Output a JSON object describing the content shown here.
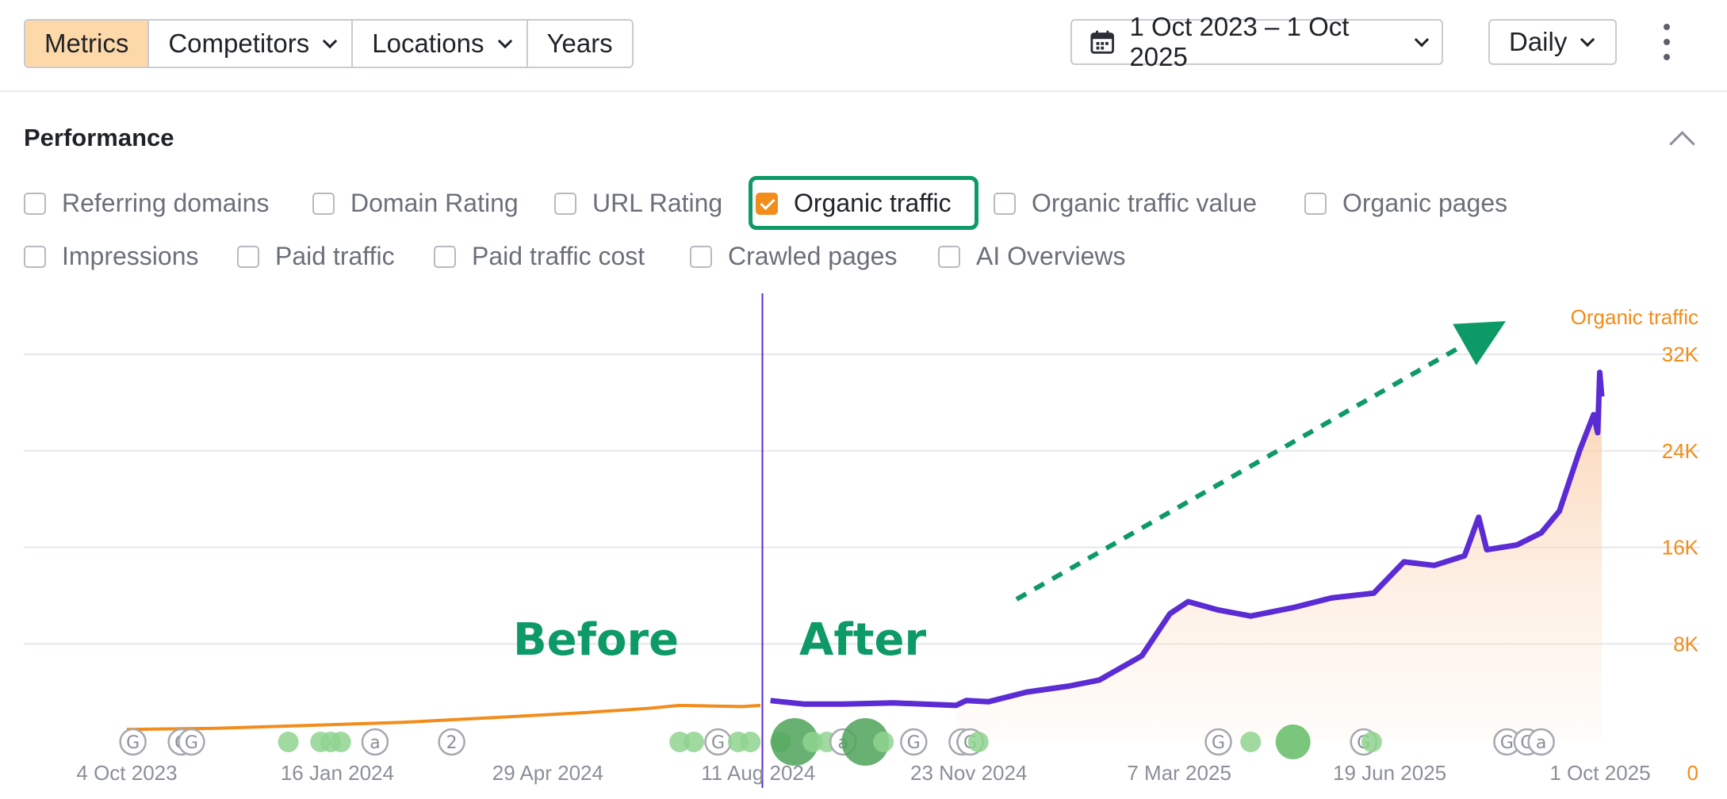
{
  "toolbar": {
    "tabs": [
      {
        "label": "Metrics",
        "active": true,
        "has_dropdown": false
      },
      {
        "label": "Competitors",
        "active": false,
        "has_dropdown": true
      },
      {
        "label": "Locations",
        "active": false,
        "has_dropdown": true
      },
      {
        "label": "Years",
        "active": false,
        "has_dropdown": false
      }
    ],
    "date_range": "1 Oct 2023 – 1 Oct 2025",
    "frequency": "Daily",
    "icons": {
      "calendar": "calendar-icon",
      "more": "more-options-icon"
    }
  },
  "section": {
    "title": "Performance",
    "metrics_row1": [
      {
        "label": "Referring domains",
        "checked": false
      },
      {
        "label": "Domain Rating",
        "checked": false
      },
      {
        "label": "URL Rating",
        "checked": false
      },
      {
        "label": "Organic traffic",
        "checked": true
      },
      {
        "label": "Organic traffic value",
        "checked": false
      },
      {
        "label": "Organic pages",
        "checked": false
      }
    ],
    "metrics_row2": [
      {
        "label": "Impressions",
        "checked": false
      },
      {
        "label": "Paid traffic",
        "checked": false
      },
      {
        "label": "Paid traffic cost",
        "checked": false
      },
      {
        "label": "Crawled pages",
        "checked": false
      },
      {
        "label": "AI Overviews",
        "checked": false
      }
    ]
  },
  "colors": {
    "accent": "#f28c1b",
    "active_tab": "#fdd8a8",
    "line_before": "#f28c1b",
    "line_after": "#5b2bd4",
    "annotation": "#0d9a67",
    "marker": "#8fd48f",
    "marker_dark": "#4fa35a"
  },
  "chart_data": {
    "type": "line",
    "series": [
      {
        "name": "Organic traffic",
        "axis_label": "Organic traffic"
      }
    ],
    "x_tick_labels": [
      "4 Oct 2023",
      "16 Jan 2024",
      "29 Apr 2024",
      "11 Aug 2024",
      "23 Nov 2024",
      "7 Mar 2025",
      "19 Jun 2025",
      "1 Oct 2025"
    ],
    "y_tick_labels": [
      "0",
      "8K",
      "16K",
      "24K",
      "32K"
    ],
    "ylim": [
      0,
      32000
    ],
    "xlim": [
      "2023-10-01",
      "2025-10-01"
    ],
    "grid": true,
    "points": [
      [
        "2023-10-01",
        900
      ],
      [
        "2023-11-15",
        1000
      ],
      [
        "2024-01-01",
        1250
      ],
      [
        "2024-02-15",
        1500
      ],
      [
        "2024-04-01",
        1900
      ],
      [
        "2024-05-15",
        2300
      ],
      [
        "2024-06-15",
        2650
      ],
      [
        "2024-07-01",
        2900
      ],
      [
        "2024-07-15",
        2850
      ],
      [
        "2024-08-01",
        2800
      ],
      [
        "2024-08-10",
        2900
      ],
      [
        "2024-08-15",
        3300
      ],
      [
        "2024-09-01",
        3000
      ],
      [
        "2024-09-20",
        3000
      ],
      [
        "2024-10-15",
        3100
      ],
      [
        "2024-11-15",
        2900
      ],
      [
        "2024-11-20",
        3300
      ],
      [
        "2024-12-01",
        3200
      ],
      [
        "2024-12-20",
        4000
      ],
      [
        "2025-01-10",
        4500
      ],
      [
        "2025-01-25",
        5000
      ],
      [
        "2025-02-15",
        7000
      ],
      [
        "2025-03-01",
        10500
      ],
      [
        "2025-03-10",
        11500
      ],
      [
        "2025-03-25",
        10800
      ],
      [
        "2025-04-10",
        10300
      ],
      [
        "2025-05-01",
        11000
      ],
      [
        "2025-05-20",
        11800
      ],
      [
        "2025-06-10",
        12200
      ],
      [
        "2025-06-25",
        14800
      ],
      [
        "2025-07-10",
        14500
      ],
      [
        "2025-07-25",
        15300
      ],
      [
        "2025-08-01",
        18500
      ],
      [
        "2025-08-05",
        15800
      ],
      [
        "2025-08-20",
        16200
      ],
      [
        "2025-09-01",
        17200
      ],
      [
        "2025-09-10",
        19000
      ],
      [
        "2025-09-20",
        24000
      ],
      [
        "2025-09-27",
        27000
      ],
      [
        "2025-09-29",
        25500
      ],
      [
        "2025-09-30",
        30500
      ],
      [
        "2025-10-01",
        28500
      ]
    ],
    "split_date": "2024-08-11",
    "annotations": [
      {
        "text": "Before",
        "side": "left"
      },
      {
        "text": "After",
        "side": "right"
      }
    ],
    "event_markers": [
      {
        "date": "2023-10-04",
        "kind": "G"
      },
      {
        "date": "2023-10-28",
        "kind": "G"
      },
      {
        "date": "2023-11-02",
        "kind": "G"
      },
      {
        "date": "2023-12-20",
        "kind": "dot"
      },
      {
        "date": "2024-01-05",
        "kind": "dot"
      },
      {
        "date": "2024-01-10",
        "kind": "dot"
      },
      {
        "date": "2024-01-15",
        "kind": "dot"
      },
      {
        "date": "2024-02-01",
        "kind": "a"
      },
      {
        "date": "2024-03-10",
        "kind": "2"
      },
      {
        "date": "2024-07-01",
        "kind": "dot"
      },
      {
        "date": "2024-07-08",
        "kind": "dot"
      },
      {
        "date": "2024-07-20",
        "kind": "G"
      },
      {
        "date": "2024-07-30",
        "kind": "dot"
      },
      {
        "date": "2024-08-05",
        "kind": "dot"
      },
      {
        "date": "2024-08-20",
        "kind": "dot"
      },
      {
        "date": "2024-08-27",
        "kind": "big"
      },
      {
        "date": "2024-09-05",
        "kind": "dot"
      },
      {
        "date": "2024-09-12",
        "kind": "dot"
      },
      {
        "date": "2024-09-20",
        "kind": "a"
      },
      {
        "date": "2024-10-01",
        "kind": "big"
      },
      {
        "date": "2024-10-10",
        "kind": "dot"
      },
      {
        "date": "2024-10-25",
        "kind": "G"
      },
      {
        "date": "2024-11-18",
        "kind": "G"
      },
      {
        "date": "2024-11-22",
        "kind": "G"
      },
      {
        "date": "2024-11-26",
        "kind": "dot"
      },
      {
        "date": "2025-03-25",
        "kind": "G"
      },
      {
        "date": "2025-04-10",
        "kind": "dot"
      },
      {
        "date": "2025-05-01",
        "kind": "bigdot"
      },
      {
        "date": "2025-06-05",
        "kind": "G"
      },
      {
        "date": "2025-06-09",
        "kind": "dot"
      },
      {
        "date": "2025-08-15",
        "kind": "G"
      },
      {
        "date": "2025-08-25",
        "kind": "G"
      },
      {
        "date": "2025-09-01",
        "kind": "a"
      }
    ]
  }
}
